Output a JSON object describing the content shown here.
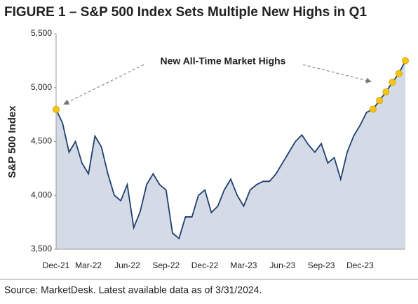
{
  "chart_data": {
    "type": "area",
    "title": "FIGURE 1 – S&P 500 Index Sets Multiple New Highs in Q1",
    "y_label": "S&P 500 Index",
    "annotation": "New All-Time Market Highs",
    "source": "Source: MarketDesk. Latest available data as of 3/31/2024.",
    "categories": [
      "Dec-21",
      null,
      null,
      null,
      null,
      "Mar-22",
      null,
      null,
      null,
      null,
      null,
      "Jun-22",
      null,
      null,
      null,
      null,
      null,
      "Sep-22",
      null,
      null,
      null,
      null,
      null,
      "Dec-22",
      null,
      null,
      null,
      null,
      null,
      "Mar-23",
      null,
      null,
      null,
      null,
      null,
      "Jun-23",
      null,
      null,
      null,
      null,
      null,
      "Sep-23",
      null,
      null,
      null,
      null,
      null,
      "Dec-23",
      null,
      null,
      null,
      null,
      null,
      null,
      null
    ],
    "values": [
      4797,
      4670,
      4400,
      4500,
      4300,
      4200,
      4550,
      4450,
      4200,
      4000,
      3950,
      4100,
      3700,
      3850,
      4100,
      4200,
      4100,
      4050,
      3650,
      3600,
      3800,
      3800,
      4000,
      4050,
      3840,
      3900,
      4050,
      4150,
      4000,
      3900,
      4050,
      4100,
      4130,
      4130,
      4200,
      4300,
      4400,
      4500,
      4560,
      4470,
      4400,
      4480,
      4300,
      4350,
      4150,
      4400,
      4550,
      4650,
      4770,
      4800,
      4880,
      4960,
      5050,
      5130,
      5250
    ],
    "highs": [
      4797,
      null,
      null,
      null,
      null,
      null,
      null,
      null,
      null,
      null,
      null,
      null,
      null,
      null,
      null,
      null,
      null,
      null,
      null,
      null,
      null,
      null,
      null,
      null,
      null,
      null,
      null,
      null,
      null,
      null,
      null,
      null,
      null,
      null,
      null,
      null,
      null,
      null,
      null,
      null,
      null,
      null,
      null,
      null,
      null,
      null,
      null,
      null,
      null,
      4800,
      4880,
      4960,
      5050,
      5130,
      5250
    ],
    "color": "#1f3f6e",
    "fill_color": "#d5dbe6",
    "high_color": "#f5c518",
    "ylim": [
      3500,
      5500
    ],
    "yticks": [
      {
        "value": 3500,
        "label": "3,500"
      },
      {
        "value": 4000,
        "label": "4,000"
      },
      {
        "value": 4500,
        "label": "4,500"
      },
      {
        "value": 5000,
        "label": "5,000"
      },
      {
        "value": 5500,
        "label": "5,500"
      }
    ]
  }
}
